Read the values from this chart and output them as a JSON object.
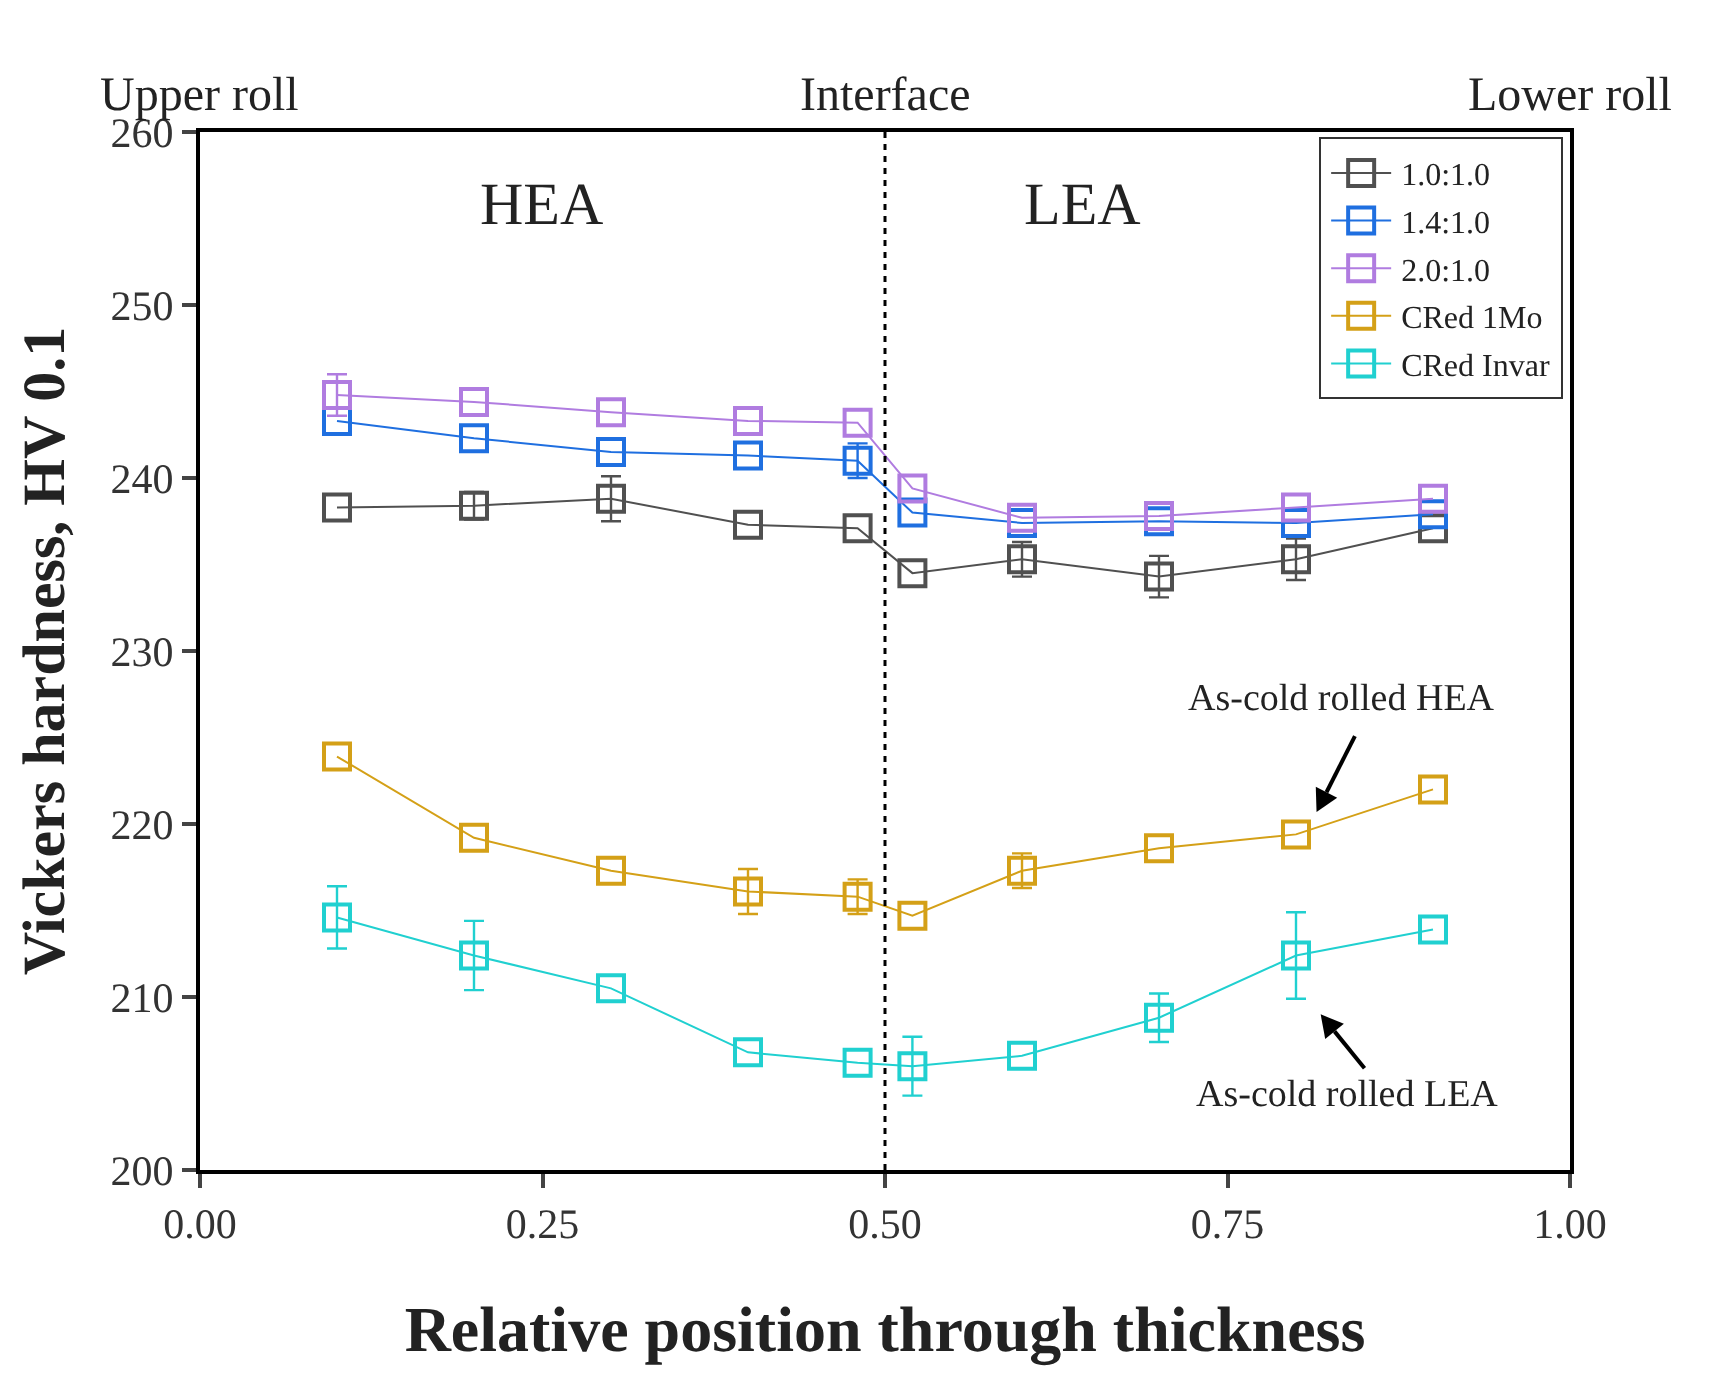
{
  "chart_data": {
    "type": "line",
    "xlabel": "Relative position through thickness",
    "ylabel": "Vickers hardness, HV 0.1",
    "x": [
      0.1,
      0.2,
      0.3,
      0.4,
      0.48,
      0.52,
      0.6,
      0.7,
      0.8,
      0.9
    ],
    "series": [
      {
        "name": "1.0:1.0",
        "color": "#505050",
        "values": [
          238.3,
          238.4,
          238.8,
          237.3,
          237.1,
          234.5,
          235.3,
          234.3,
          235.3,
          237.1
        ],
        "errors": [
          null,
          0.8,
          1.3,
          null,
          null,
          null,
          1.0,
          1.2,
          1.2,
          null
        ]
      },
      {
        "name": "1.4:1.0",
        "color": "#1f6fe0",
        "values": [
          243.3,
          242.3,
          241.5,
          241.3,
          241.0,
          238.0,
          237.4,
          237.5,
          237.4,
          237.9
        ],
        "errors": [
          null,
          null,
          null,
          null,
          1.0,
          null,
          null,
          null,
          null,
          null
        ]
      },
      {
        "name": "2.0:1.0",
        "color": "#b07ce0",
        "values": [
          244.8,
          244.4,
          243.8,
          243.3,
          243.2,
          239.4,
          237.7,
          237.8,
          238.3,
          238.8
        ],
        "errors": [
          1.2,
          null,
          null,
          null,
          null,
          null,
          null,
          null,
          null,
          null
        ]
      },
      {
        "name": "CRed 1Mo",
        "color": "#d4a017",
        "values": [
          223.9,
          219.2,
          217.3,
          216.1,
          215.8,
          214.7,
          217.3,
          218.6,
          219.4,
          222.0
        ],
        "errors": [
          null,
          null,
          null,
          1.3,
          1.0,
          null,
          1.0,
          null,
          null,
          null
        ]
      },
      {
        "name": "CRed Invar",
        "color": "#20d0d0",
        "values": [
          214.6,
          212.4,
          210.5,
          206.8,
          206.2,
          206.0,
          206.6,
          208.8,
          212.4,
          213.9
        ],
        "errors": [
          1.8,
          2.0,
          null,
          null,
          null,
          1.7,
          null,
          1.4,
          2.5,
          null
        ]
      }
    ],
    "xlim": [
      0,
      1
    ],
    "xticks": [
      {
        "value": 0,
        "label": "0.00"
      },
      0.25,
      {
        "value": 0.5,
        "label": "0.50"
      },
      0.75,
      {
        "value": 1,
        "label": "1.00"
      }
    ],
    "ylim": [
      200,
      260
    ],
    "yticks": [
      200,
      210,
      220,
      230,
      240,
      250,
      260
    ],
    "ref_lines": [
      {
        "axis": "x",
        "value": 0.5,
        "color": "#000000",
        "line_style": "dotted"
      }
    ],
    "annotations": [
      "Upper roll",
      "Interface",
      "Lower roll",
      "HEA",
      "LEA",
      "As-cold rolled HEA",
      "As-cold rolled LEA"
    ],
    "legend": "top right",
    "marker": "square",
    "line_style": "solid",
    "grid": false
  }
}
